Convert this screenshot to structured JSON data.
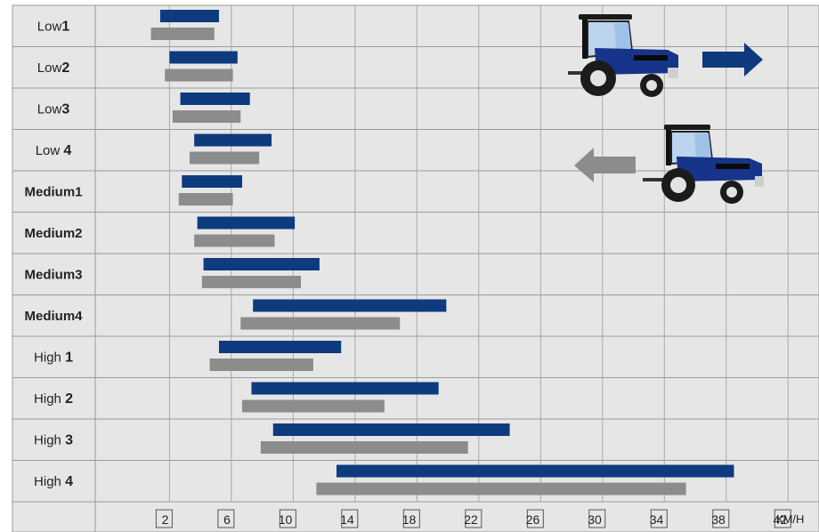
{
  "chart_data": {
    "type": "bar",
    "orientation": "horizontal",
    "subtype": "range",
    "unit": "КМ/Н",
    "x_ticks": [
      2,
      6,
      10,
      14,
      18,
      22,
      26,
      30,
      34,
      38,
      42
    ],
    "xlim": [
      -2.8,
      44
    ],
    "grid": true,
    "rows": [
      {
        "label": "Low",
        "num": "1",
        "bold": false,
        "forward": [
          1.4,
          5.2
        ],
        "reverse": [
          0.8,
          4.9
        ]
      },
      {
        "label": "Low",
        "num": "2",
        "bold": false,
        "forward": [
          2.0,
          6.4
        ],
        "reverse": [
          1.7,
          6.1
        ]
      },
      {
        "label": "Low",
        "num": "3",
        "bold": false,
        "forward": [
          2.7,
          7.2
        ],
        "reverse": [
          2.2,
          6.6
        ]
      },
      {
        "label": "Low ",
        "num": "4",
        "bold": false,
        "forward": [
          3.6,
          8.6
        ],
        "reverse": [
          3.3,
          7.8
        ]
      },
      {
        "label": "Medium1",
        "num": "",
        "bold": true,
        "forward": [
          2.8,
          6.7
        ],
        "reverse": [
          2.6,
          6.1
        ]
      },
      {
        "label": "Medium2",
        "num": "",
        "bold": true,
        "forward": [
          3.8,
          10.1
        ],
        "reverse": [
          3.6,
          8.8
        ]
      },
      {
        "label": "Medium3",
        "num": "",
        "bold": true,
        "forward": [
          4.2,
          11.7
        ],
        "reverse": [
          4.1,
          10.5
        ]
      },
      {
        "label": "Medium4",
        "num": "",
        "bold": true,
        "forward": [
          7.4,
          19.9
        ],
        "reverse": [
          6.6,
          16.9
        ]
      },
      {
        "label": "High ",
        "num": "1",
        "bold": false,
        "forward": [
          5.2,
          13.1
        ],
        "reverse": [
          4.6,
          11.3
        ]
      },
      {
        "label": "High ",
        "num": "2",
        "bold": false,
        "forward": [
          7.3,
          19.4
        ],
        "reverse": [
          6.7,
          15.9
        ]
      },
      {
        "label": "High ",
        "num": "3",
        "bold": false,
        "forward": [
          8.7,
          24.0
        ],
        "reverse": [
          7.9,
          21.3
        ]
      },
      {
        "label": "High ",
        "num": "4",
        "bold": false,
        "forward": [
          12.8,
          38.5
        ],
        "reverse": [
          11.5,
          35.4
        ]
      }
    ],
    "series": [
      {
        "key": "forward",
        "color": "#0e3a7e"
      },
      {
        "key": "reverse",
        "color": "#8c8c8c"
      }
    ],
    "legend": {
      "forward_icon": "tractor-forward-icon",
      "forward_arrow": "arrow-right-icon",
      "reverse_icon": "tractor-reverse-icon",
      "reverse_arrow": "arrow-left-icon",
      "placement": "top-right"
    }
  }
}
